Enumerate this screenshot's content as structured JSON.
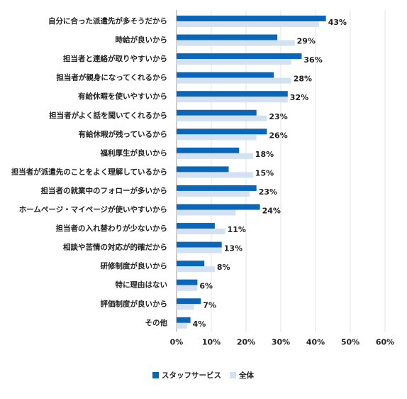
{
  "chart_data": {
    "type": "bar",
    "orientation": "horizontal",
    "categories": [
      "自分に合った派遣先が多そうだから",
      "時給が良いから",
      "担当者と連絡が取りやすいから",
      "担当者が親身になってくれるから",
      "有給休暇を使いやすいから",
      "担当者がよく話を聞いてくれるから",
      "有給休暇が残っているから",
      "福利厚生が良いから",
      "担当者が派遣先のことをよく理解しているから",
      "担当者の就業中のフォローが多いから",
      "ホームページ・マイページが使いやすいから",
      "担当者の入れ替わりが少ないから",
      "相談や苦情の対応が的確だから",
      "研修制度が良いから",
      "特に理由はない",
      "評価制度が良いから",
      "その他"
    ],
    "series": [
      {
        "name": "スタッフサービス",
        "color": "#0a66b8",
        "values": [
          43,
          29,
          36,
          28,
          32,
          23,
          26,
          18,
          15,
          23,
          24,
          11,
          13,
          8,
          6,
          7,
          4
        ],
        "labels": [
          "43%",
          "29%",
          "36%",
          "28%",
          "32%",
          "23%",
          "26%",
          "18%",
          "15%",
          "23%",
          "24%",
          "11%",
          "13%",
          "8%",
          "6%",
          "7%",
          "4%"
        ]
      },
      {
        "name": "全体",
        "color": "#d3e1f3",
        "values": [
          41,
          34,
          33,
          33,
          32,
          26,
          23,
          22,
          22,
          21,
          17,
          14,
          13,
          11,
          6,
          5,
          3
        ]
      }
    ],
    "xlim": [
      0,
      60
    ],
    "xticks": [
      "0%",
      "10%",
      "20%",
      "30%",
      "40%",
      "50%",
      "60%"
    ],
    "grid": true,
    "legend": "bottom"
  }
}
